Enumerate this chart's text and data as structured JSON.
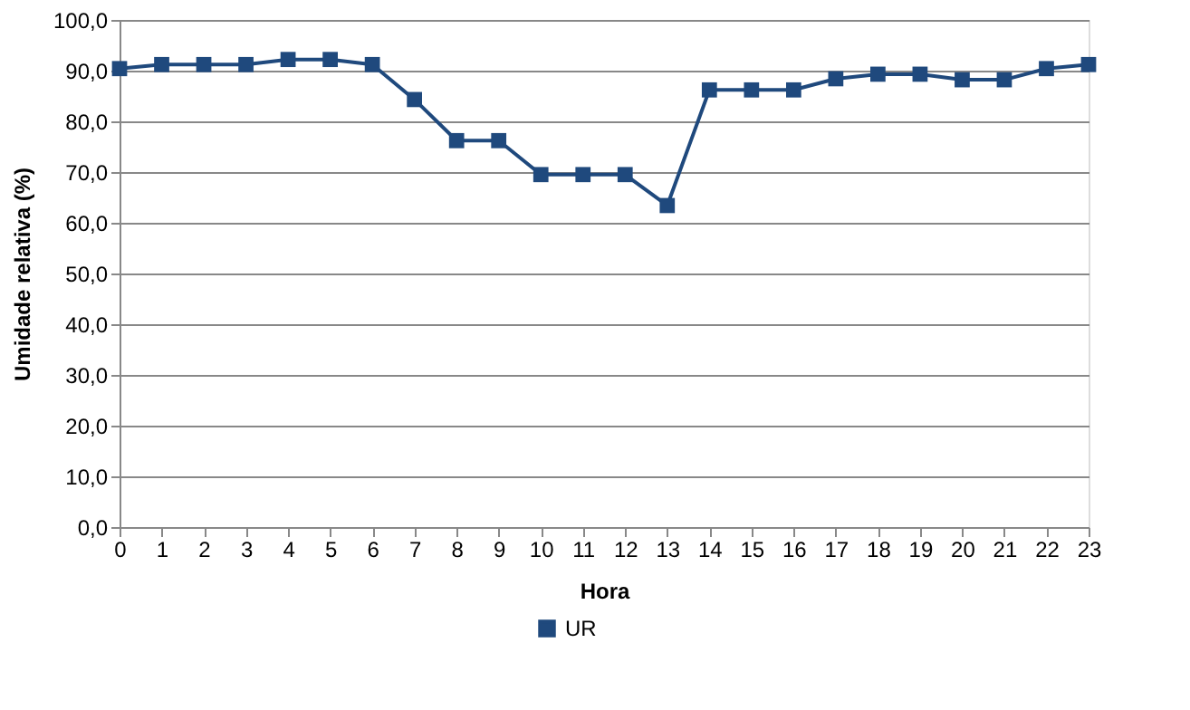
{
  "chart_data": {
    "type": "line",
    "xlabel": "Hora",
    "ylabel": "Umidade relativa (%)",
    "x": [
      0,
      1,
      2,
      3,
      4,
      5,
      6,
      7,
      8,
      9,
      10,
      11,
      12,
      13,
      14,
      15,
      16,
      17,
      18,
      19,
      20,
      21,
      22,
      23
    ],
    "series": [
      {
        "name": "UR",
        "color": "#1f497d",
        "values": [
          90.4,
          91.2,
          91.2,
          91.2,
          92.2,
          92.2,
          91.2,
          84.3,
          76.2,
          76.2,
          69.5,
          69.5,
          69.5,
          63.4,
          86.2,
          86.2,
          86.2,
          88.4,
          89.3,
          89.3,
          88.2,
          88.2,
          90.4,
          91.2
        ]
      }
    ],
    "xlim": [
      0,
      23
    ],
    "xticks": [
      0,
      1,
      2,
      3,
      4,
      5,
      6,
      7,
      8,
      9,
      10,
      11,
      12,
      13,
      14,
      15,
      16,
      17,
      18,
      19,
      20,
      21,
      22,
      23
    ],
    "ylim": [
      0,
      100
    ],
    "yticks": [
      {
        "value": 0,
        "label": "0,0"
      },
      {
        "value": 10,
        "label": "10,0"
      },
      {
        "value": 20,
        "label": "20,0"
      },
      {
        "value": 30,
        "label": "30,0"
      },
      {
        "value": 40,
        "label": "40,0"
      },
      {
        "value": 50,
        "label": "50,0"
      },
      {
        "value": 60,
        "label": "60,0"
      },
      {
        "value": 70,
        "label": "70,0"
      },
      {
        "value": 80,
        "label": "80,0"
      },
      {
        "value": 90,
        "label": "90,0"
      },
      {
        "value": 100,
        "label": "100,0"
      }
    ],
    "grid": "y",
    "legend": "bottom",
    "marker": "square",
    "line_style": "solid"
  }
}
